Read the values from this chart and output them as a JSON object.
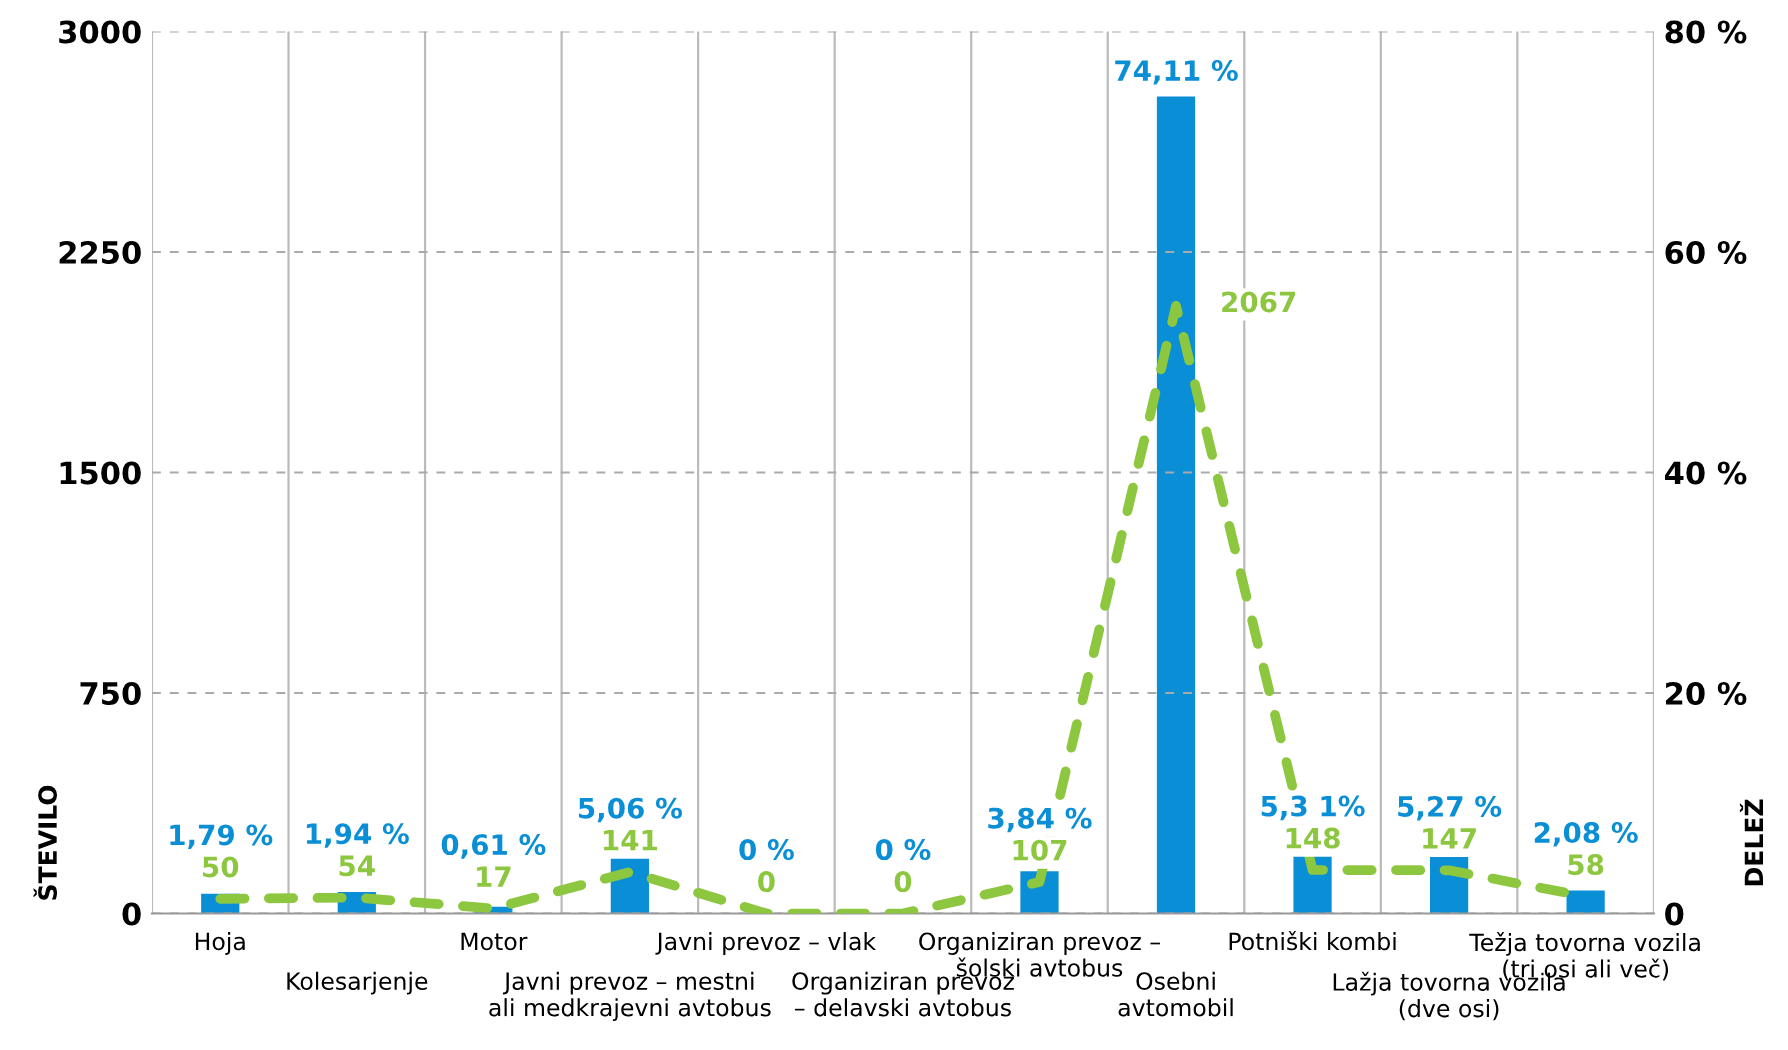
{
  "chart_data": {
    "type": "bar",
    "ylabel": "ŠTEVILO",
    "y2label": "DELEŽ",
    "categories": [
      "Hoja",
      "Kolesarjenje",
      "Motor",
      "Javni prevoz – mestni\nali medkrajevni avtobus",
      "Javni prevoz – vlak",
      "Organiziran prevoz\n– delavski avtobus",
      "Organiziran prevoz –\nšolski avtobus",
      "Osebni\navtomobil",
      "Potniški kombi",
      "Lažja tovorna vozila\n(dve osi)",
      "Težja tovorna vozila\n(tri osi ali več)"
    ],
    "series": [
      {
        "axis": "y2",
        "color": "#0a8fd6",
        "values": [
          1.79,
          1.94,
          0.61,
          5.06,
          0,
          0,
          3.84,
          74.11,
          5.31,
          5.27,
          2.08
        ],
        "value_labels": [
          "1,79 %",
          "1,94 %",
          "0,61 %",
          "5,06 %",
          "0 %",
          "0 %",
          "3,84 %",
          "74,11 %",
          "5,3 1%",
          "5,27 %",
          "2,08 %"
        ]
      },
      {
        "type": "line",
        "axis": "y",
        "color": "#8dc63f",
        "line_style": "dashed",
        "values": [
          50,
          54,
          17,
          141,
          0,
          0,
          107,
          2067,
          148,
          147,
          58
        ],
        "value_labels": [
          "50",
          "54",
          "17",
          "141",
          "0",
          "0",
          "107",
          "2067",
          "148",
          "147",
          "58"
        ]
      }
    ],
    "ylim": [
      0,
      3000
    ],
    "yticks": [
      0,
      750,
      1500,
      2250,
      3000
    ],
    "y2lim": [
      0,
      80
    ],
    "y2ticks": [
      0,
      {
        "value": 20,
        "label": "20 %"
      },
      {
        "value": 40,
        "label": "40 %"
      },
      {
        "value": 60,
        "label": "60 %"
      },
      {
        "value": 80,
        "label": "80 %"
      }
    ],
    "grid": "y",
    "legend": false
  }
}
